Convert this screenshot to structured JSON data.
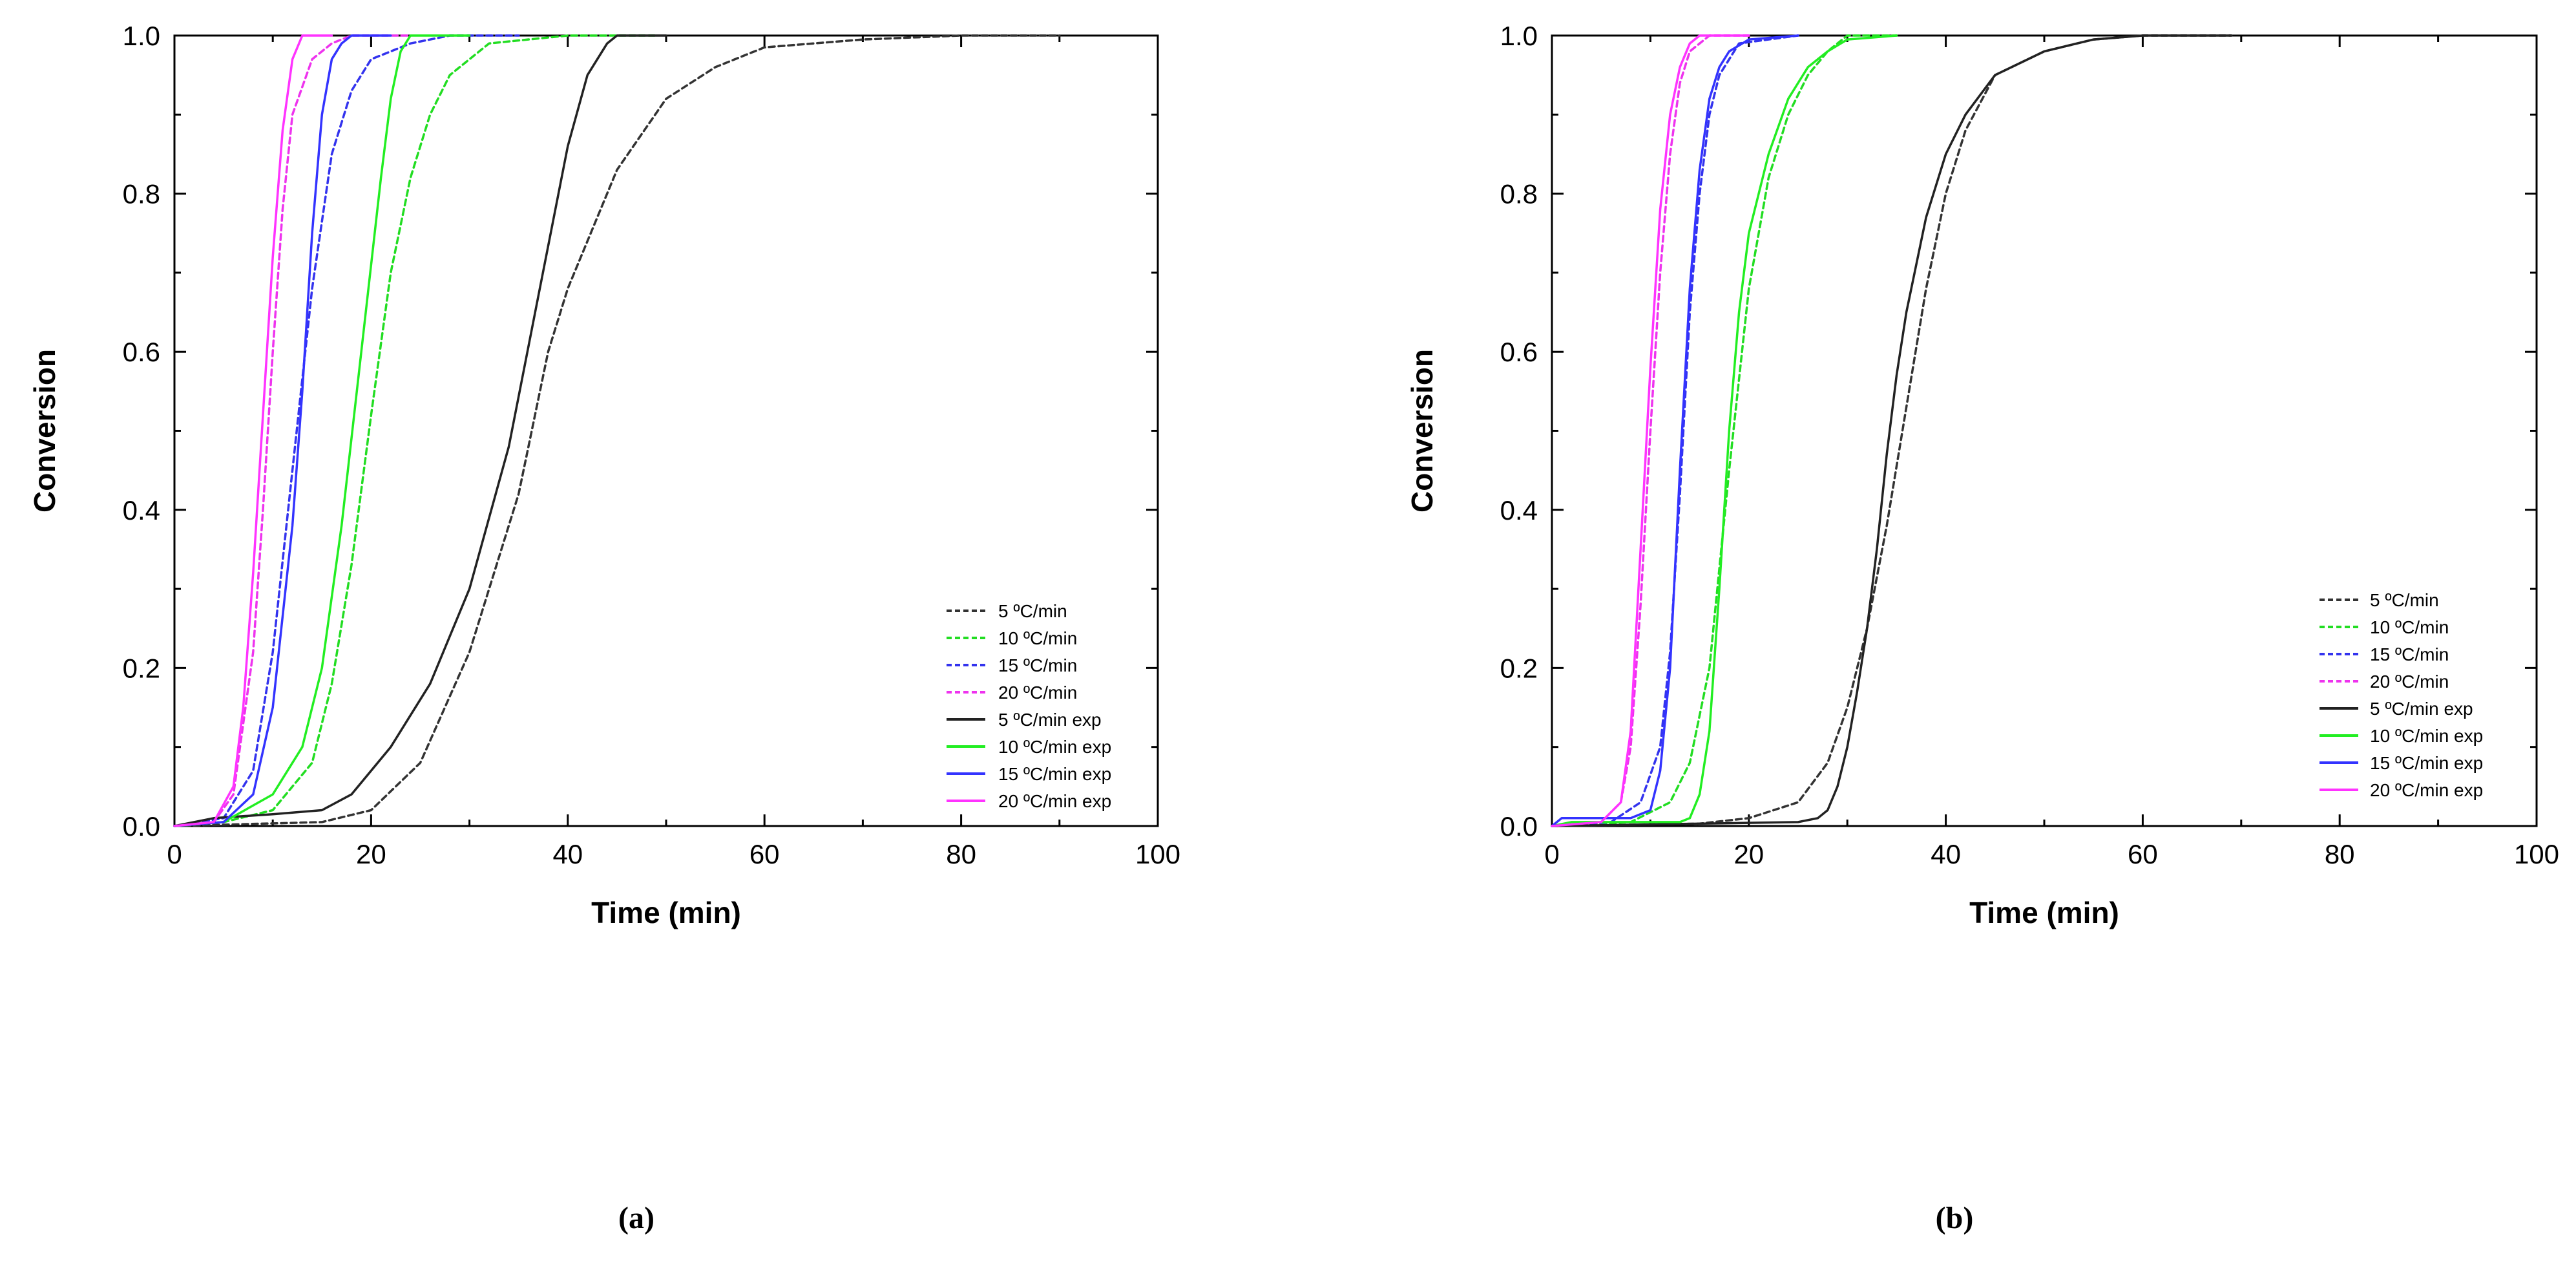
{
  "chart_data": [
    {
      "type": "line",
      "panel_label": "(a)",
      "xlabel": "Time (min)",
      "ylabel": "Conversion",
      "xlim": [
        0,
        100
      ],
      "ylim": [
        0,
        1
      ],
      "x_ticks": [
        "0",
        "20",
        "40",
        "60",
        "80",
        "100"
      ],
      "y_ticks": [
        "0.0",
        "0.2",
        "0.4",
        "0.6",
        "0.8",
        "1.0"
      ],
      "grid": false,
      "legend_position": "bottom-right",
      "series": [
        {
          "name": "5 ºC/min",
          "color": "#333333",
          "style": "dashed",
          "x": [
            0,
            15,
            20,
            25,
            30,
            35,
            38,
            40,
            45,
            50,
            55,
            60,
            70,
            80,
            90
          ],
          "y": [
            0,
            0.005,
            0.02,
            0.08,
            0.22,
            0.42,
            0.6,
            0.68,
            0.83,
            0.92,
            0.96,
            0.985,
            0.995,
            1.0,
            1.0
          ]
        },
        {
          "name": "10 ºC/min",
          "color": "#22dd22",
          "style": "dashed",
          "x": [
            0,
            5,
            10,
            14,
            16,
            18,
            20,
            22,
            24,
            26,
            28,
            32,
            40,
            49
          ],
          "y": [
            0,
            0.005,
            0.02,
            0.08,
            0.18,
            0.33,
            0.52,
            0.7,
            0.82,
            0.9,
            0.95,
            0.99,
            1.0,
            1.0
          ]
        },
        {
          "name": "15 ºC/min",
          "color": "#3333ee",
          "style": "dashed",
          "x": [
            0,
            5,
            8,
            10,
            12,
            14,
            16,
            18,
            20,
            24,
            28,
            35
          ],
          "y": [
            0,
            0.01,
            0.07,
            0.22,
            0.45,
            0.68,
            0.85,
            0.93,
            0.97,
            0.99,
            1.0,
            1.0
          ]
        },
        {
          "name": "20 ºC/min",
          "color": "#ee33ee",
          "style": "dashed",
          "x": [
            0,
            4,
            6,
            8,
            9,
            10,
            11,
            12,
            14,
            16,
            18,
            24
          ],
          "y": [
            0,
            0.005,
            0.04,
            0.22,
            0.4,
            0.6,
            0.78,
            0.9,
            0.97,
            0.99,
            1.0,
            1.0
          ]
        },
        {
          "name": "5 ºC/min exp",
          "color": "#222222",
          "style": "solid",
          "x": [
            0,
            4,
            10,
            15,
            18,
            22,
            26,
            30,
            34,
            37,
            40,
            42,
            44,
            45,
            50
          ],
          "y": [
            0,
            0.01,
            0.015,
            0.02,
            0.04,
            0.1,
            0.18,
            0.3,
            0.48,
            0.67,
            0.86,
            0.95,
            0.99,
            1.0,
            1.0
          ]
        },
        {
          "name": "10 ºC/min exp",
          "color": "#22ee22",
          "style": "solid",
          "x": [
            0,
            5,
            10,
            13,
            15,
            17,
            19,
            21,
            22,
            23,
            24,
            30
          ],
          "y": [
            0,
            0.005,
            0.04,
            0.1,
            0.2,
            0.38,
            0.6,
            0.82,
            0.92,
            0.98,
            1.0,
            1.0
          ]
        },
        {
          "name": "15 ºC/min exp",
          "color": "#3333ff",
          "style": "solid",
          "x": [
            0,
            5,
            8,
            10,
            12,
            13,
            14,
            15,
            16,
            17,
            18,
            22
          ],
          "y": [
            0,
            0.005,
            0.04,
            0.15,
            0.38,
            0.55,
            0.75,
            0.9,
            0.97,
            0.99,
            1.0,
            1.0
          ]
        },
        {
          "name": "20 ºC/min exp",
          "color": "#ff33ff",
          "style": "solid",
          "x": [
            0,
            4,
            6,
            7,
            8,
            9,
            10,
            11,
            12,
            13,
            16
          ],
          "y": [
            0,
            0.005,
            0.05,
            0.15,
            0.32,
            0.52,
            0.72,
            0.88,
            0.97,
            1.0,
            1.0
          ]
        }
      ]
    },
    {
      "type": "line",
      "panel_label": "(b)",
      "xlabel": "Time (min)",
      "ylabel": "Conversion",
      "xlim": [
        0,
        100
      ],
      "ylim": [
        0,
        1
      ],
      "x_ticks": [
        "0",
        "20",
        "40",
        "60",
        "80",
        "100"
      ],
      "y_ticks": [
        "0.0",
        "0.2",
        "0.4",
        "0.6",
        "0.8",
        "1.0"
      ],
      "grid": false,
      "legend_position": "bottom-right",
      "series": [
        {
          "name": "5 ºC/min",
          "color": "#333333",
          "style": "dashed",
          "x": [
            0,
            15,
            20,
            25,
            28,
            30,
            32,
            34,
            36,
            38,
            40,
            42,
            45,
            50,
            55,
            60,
            69
          ],
          "y": [
            0,
            0.003,
            0.01,
            0.03,
            0.08,
            0.15,
            0.25,
            0.38,
            0.53,
            0.68,
            0.8,
            0.88,
            0.95,
            0.98,
            0.995,
            1.0,
            1.0
          ]
        },
        {
          "name": "10 ºC/min",
          "color": "#22dd22",
          "style": "dashed",
          "x": [
            0,
            8,
            12,
            14,
            16,
            18,
            20,
            22,
            24,
            26,
            28,
            30,
            35
          ],
          "y": [
            0,
            0.005,
            0.03,
            0.08,
            0.2,
            0.45,
            0.68,
            0.82,
            0.9,
            0.95,
            0.98,
            1.0,
            1.0
          ]
        },
        {
          "name": "15 ºC/min",
          "color": "#3333ee",
          "style": "dashed",
          "x": [
            0,
            6,
            9,
            11,
            12,
            13,
            14,
            15,
            16,
            17,
            19,
            25
          ],
          "y": [
            0,
            0.005,
            0.03,
            0.1,
            0.22,
            0.42,
            0.65,
            0.8,
            0.9,
            0.95,
            0.99,
            1.0
          ]
        },
        {
          "name": "20 ºC/min",
          "color": "#ee33ee",
          "style": "dashed",
          "x": [
            0,
            5,
            7,
            8,
            9,
            10,
            11,
            12,
            13,
            14,
            16,
            20
          ],
          "y": [
            0,
            0.005,
            0.03,
            0.1,
            0.28,
            0.5,
            0.7,
            0.85,
            0.94,
            0.98,
            1.0,
            1.0
          ]
        },
        {
          "name": "5 ºC/min exp",
          "color": "#222222",
          "style": "solid",
          "x": [
            0,
            25,
            27,
            28,
            29,
            30,
            31,
            32,
            33,
            34,
            35,
            36,
            38,
            40,
            42,
            45,
            50,
            55,
            60,
            69
          ],
          "y": [
            0,
            0.005,
            0.01,
            0.02,
            0.05,
            0.1,
            0.17,
            0.25,
            0.35,
            0.47,
            0.57,
            0.65,
            0.77,
            0.85,
            0.9,
            0.95,
            0.98,
            0.995,
            1.0,
            1.0
          ]
        },
        {
          "name": "10 ºC/min exp",
          "color": "#22ee22",
          "style": "solid",
          "x": [
            0,
            2,
            13,
            14,
            15,
            16,
            17,
            18,
            19,
            20,
            22,
            24,
            26,
            28,
            30,
            35
          ],
          "y": [
            0,
            0.005,
            0.005,
            0.01,
            0.04,
            0.12,
            0.3,
            0.5,
            0.65,
            0.75,
            0.85,
            0.92,
            0.96,
            0.98,
            0.995,
            1.0
          ]
        },
        {
          "name": "15 ºC/min exp",
          "color": "#3333ff",
          "style": "solid",
          "x": [
            0,
            1,
            8,
            10,
            11,
            12,
            13,
            14,
            15,
            16,
            17,
            18,
            20,
            25
          ],
          "y": [
            0,
            0.01,
            0.01,
            0.02,
            0.07,
            0.2,
            0.45,
            0.68,
            0.83,
            0.92,
            0.96,
            0.98,
            0.995,
            1.0
          ]
        },
        {
          "name": "20 ºC/min exp",
          "color": "#ff33ff",
          "style": "solid",
          "x": [
            0,
            5,
            7,
            8,
            9,
            10,
            11,
            12,
            13,
            14,
            15,
            20
          ],
          "y": [
            0,
            0.005,
            0.03,
            0.12,
            0.35,
            0.58,
            0.78,
            0.9,
            0.96,
            0.99,
            1.0,
            1.0
          ]
        }
      ]
    }
  ]
}
